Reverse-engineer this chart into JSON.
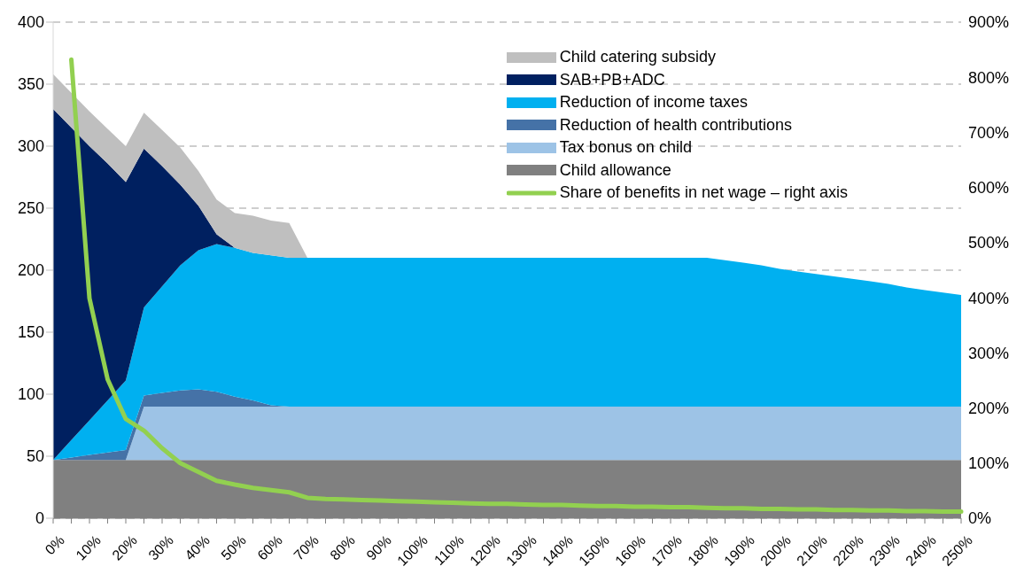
{
  "chart_data": {
    "type": "area",
    "stacked": true,
    "grid": "y",
    "legend": "top right",
    "categories": [
      "0%",
      null,
      "10%",
      null,
      "20%",
      null,
      "30%",
      null,
      "40%",
      null,
      "50%",
      null,
      "60%",
      null,
      "70%",
      null,
      "80%",
      null,
      "90%",
      null,
      "100%",
      null,
      "110%",
      null,
      "120%",
      null,
      "130%",
      null,
      "140%",
      null,
      "150%",
      null,
      "160%",
      null,
      "170%",
      null,
      "180%",
      null,
      "190%",
      null,
      "200%",
      null,
      "210%",
      null,
      "220%",
      null,
      "230%",
      null,
      "240%",
      null,
      "250%"
    ],
    "ylim": [
      0,
      400
    ],
    "yticks": [
      0,
      50,
      100,
      150,
      200,
      250,
      300,
      350,
      400
    ],
    "y2lim": [
      0,
      900
    ],
    "y2ticks": [
      {
        "value": 0,
        "label": "0%"
      },
      {
        "value": 100,
        "label": "100%"
      },
      {
        "value": 200,
        "label": "200%"
      },
      {
        "value": 300,
        "label": "300%"
      },
      {
        "value": 400,
        "label": "400%"
      },
      {
        "value": 500,
        "label": "500%"
      },
      {
        "value": 600,
        "label": "600%"
      },
      {
        "value": 700,
        "label": "700%"
      },
      {
        "value": 800,
        "label": "800%"
      },
      {
        "value": 900,
        "label": "900%"
      }
    ],
    "series": [
      {
        "name": "Child allowance",
        "type": "area",
        "color": "#808080",
        "values": [
          47,
          47,
          47,
          47,
          47,
          47,
          47,
          47,
          47,
          47,
          47,
          47,
          47,
          47,
          47,
          47,
          47,
          47,
          47,
          47,
          47,
          47,
          47,
          47,
          47,
          47,
          47,
          47,
          47,
          47,
          47,
          47,
          47,
          47,
          47,
          47,
          47,
          47,
          47,
          47,
          47,
          47,
          47,
          47,
          47,
          47,
          47,
          47,
          47,
          47,
          47
        ]
      },
      {
        "name": "Tax bonus on child",
        "type": "area",
        "color": "#9dc3e6",
        "values": [
          0,
          0,
          0,
          0,
          0,
          43,
          43,
          43,
          43,
          43,
          43,
          43,
          43,
          43,
          43,
          43,
          43,
          43,
          43,
          43,
          43,
          43,
          43,
          43,
          43,
          43,
          43,
          43,
          43,
          43,
          43,
          43,
          43,
          43,
          43,
          43,
          43,
          43,
          43,
          43,
          43,
          43,
          43,
          43,
          43,
          43,
          43,
          43,
          43,
          43,
          43
        ]
      },
      {
        "name": "Reduction of health contributions",
        "type": "area",
        "color": "#4572a7",
        "values": [
          0,
          2,
          4,
          6,
          8,
          9,
          11,
          13,
          14,
          12,
          8,
          5,
          1,
          0,
          0,
          0,
          0,
          0,
          0,
          0,
          0,
          0,
          0,
          0,
          0,
          0,
          0,
          0,
          0,
          0,
          0,
          0,
          0,
          0,
          0,
          0,
          0,
          0,
          0,
          0,
          0,
          0,
          0,
          0,
          0,
          0,
          0,
          0,
          0,
          0,
          0
        ]
      },
      {
        "name": "Reduction of income taxes",
        "type": "area",
        "color": "#00b0f0",
        "values": [
          0,
          14,
          28,
          42,
          56,
          71,
          86,
          101,
          112,
          119,
          120,
          119,
          121,
          120,
          120,
          120,
          120,
          120,
          120,
          120,
          120,
          120,
          120,
          120,
          120,
          120,
          120,
          120,
          120,
          120,
          120,
          120,
          120,
          120,
          120,
          120,
          120,
          118,
          116,
          114,
          111,
          109,
          107,
          105,
          103,
          101,
          99,
          96,
          94,
          92,
          90
        ]
      },
      {
        "name": "SAB+PB+ADC",
        "type": "area",
        "color": "#002060",
        "values": [
          283,
          252,
          221,
          191,
          160,
          128,
          97,
          65,
          36,
          8,
          0,
          0,
          0,
          0,
          0,
          0,
          0,
          0,
          0,
          0,
          0,
          0,
          0,
          0,
          0,
          0,
          0,
          0,
          0,
          0,
          0,
          0,
          0,
          0,
          0,
          0,
          0,
          0,
          0,
          0,
          0,
          0,
          0,
          0,
          0,
          0,
          0,
          0,
          0,
          0,
          0
        ]
      },
      {
        "name": "Child catering subsidy",
        "type": "area",
        "color": "#bfbfbf",
        "values": [
          28,
          28,
          28,
          28,
          29,
          29,
          29,
          30,
          28,
          28,
          28,
          30,
          28,
          28,
          0,
          0,
          0,
          0,
          0,
          0,
          0,
          0,
          0,
          0,
          0,
          0,
          0,
          0,
          0,
          0,
          0,
          0,
          0,
          0,
          0,
          0,
          0,
          0,
          0,
          0,
          0,
          0,
          0,
          0,
          0,
          0,
          0,
          0,
          0,
          0,
          0
        ]
      },
      {
        "name": "Share of benefits in net wage – right axis",
        "type": "line",
        "axis": "y2",
        "color": "#92d050",
        "values": [
          null,
          832,
          399,
          252,
          180,
          159,
          127,
          100,
          84,
          68,
          61,
          55,
          51,
          47,
          37,
          35,
          34,
          33,
          32,
          31,
          30,
          29,
          28,
          27,
          26,
          26,
          25,
          24,
          24,
          23,
          22,
          22,
          21,
          21,
          20,
          20,
          19,
          18,
          18,
          17,
          17,
          16,
          16,
          15,
          15,
          14,
          14,
          13,
          13,
          12,
          12
        ]
      }
    ]
  }
}
